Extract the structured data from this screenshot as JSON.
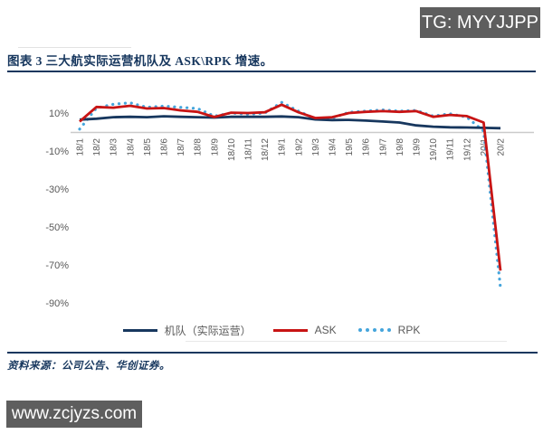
{
  "overlay": {
    "tg_badge": "TG: MYYJJPP",
    "watermark": "www.zcjyzs.com"
  },
  "figure": {
    "title": "图表 3 三大航实际运营机队及 ASK\\RPK 增速。",
    "source": "资料来源：公司公告、华创证券。"
  },
  "colors": {
    "title_navy": "#17375e",
    "axis_gray": "#cbcbcb",
    "label_gray": "#595959"
  },
  "chart_data": {
    "type": "line",
    "title": "三大航实际运营机队及 ASK\\RPK 增速",
    "categories": [
      "18/1",
      "18/2",
      "18/3",
      "18/4",
      "18/5",
      "18/6",
      "18/7",
      "18/8",
      "18/9",
      "18/10",
      "18/11",
      "18/12",
      "19/1",
      "19/2",
      "19/3",
      "19/4",
      "19/5",
      "19/6",
      "19/7",
      "19/8",
      "19/9",
      "19/10",
      "19/11",
      "19/12",
      "20/1",
      "20/2"
    ],
    "series": [
      {
        "name": "机队（实际运营）",
        "color": "#17375e",
        "style": "solid",
        "values": [
          6.5,
          7.0,
          7.8,
          8.0,
          7.8,
          8.3,
          8.0,
          7.8,
          7.6,
          8.0,
          8.0,
          8.0,
          8.2,
          7.8,
          6.6,
          6.3,
          6.4,
          6.0,
          5.5,
          5.0,
          3.5,
          2.8,
          2.5,
          2.4,
          2.2,
          2.0
        ]
      },
      {
        "name": "ASK",
        "color": "#c81414",
        "style": "solid",
        "values": [
          5.5,
          13.2,
          12.8,
          13.8,
          12.4,
          12.6,
          11.4,
          10.6,
          7.9,
          10.2,
          10.0,
          10.4,
          14.4,
          10.4,
          7.4,
          7.8,
          10.0,
          10.6,
          11.0,
          10.6,
          11.0,
          8.0,
          9.0,
          8.4,
          5.0,
          -73.0
        ]
      },
      {
        "name": "RPK",
        "color": "#45a5dc",
        "style": "dotted",
        "values": [
          1.5,
          12.6,
          14.6,
          15.4,
          13.0,
          13.6,
          13.0,
          12.4,
          8.4,
          10.0,
          9.4,
          10.0,
          15.6,
          11.0,
          7.0,
          7.4,
          10.4,
          11.0,
          11.6,
          11.0,
          11.4,
          8.4,
          9.6,
          7.8,
          0.5,
          -82.0
        ]
      }
    ],
    "xlabel": "",
    "ylabel": "",
    "y_ticks": [
      10,
      -10,
      -30,
      -50,
      -70,
      -90
    ],
    "y_tick_suffix": "%",
    "ylim": [
      -95,
      20
    ],
    "grid": false,
    "legend_position": "bottom"
  }
}
